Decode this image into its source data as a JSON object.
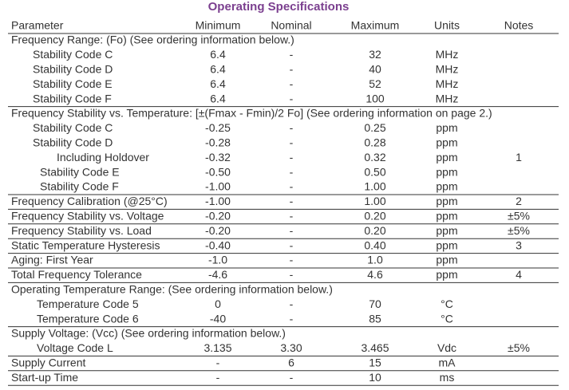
{
  "title": "Operating Specifications",
  "table": {
    "header": [
      "Parameter",
      "Minimum",
      "Nominal",
      "Maximum",
      "Units",
      "Notes"
    ],
    "rows": [
      {
        "parameter": "Frequency Range: (Fo) (See ordering information below.)"
      },
      {
        "parameter": "Stability Code C",
        "minimum": "6.4",
        "nominal": "-",
        "maximum": "32",
        "units": "MHz"
      },
      {
        "parameter": "Stability Code D",
        "minimum": "6.4",
        "nominal": "-",
        "maximum": "40",
        "units": "MHz"
      },
      {
        "parameter": "Stability Code E",
        "minimum": "6.4",
        "nominal": "-",
        "maximum": "52",
        "units": "MHz"
      },
      {
        "parameter": "Stability Code F",
        "minimum": "6.4",
        "nominal": "-",
        "maximum": "100",
        "units": "MHz"
      },
      {
        "parameter": "Frequency Stability vs. Temperature: [±(Fmax - Fmin)/2 Fo] (See ordering information on page 2.)"
      },
      {
        "parameter": "Stability Code C",
        "minimum": "-0.25",
        "nominal": "-",
        "maximum": "0.25",
        "units": "ppm"
      },
      {
        "parameter": "Stability Code D",
        "minimum": "-0.28",
        "nominal": "-",
        "maximum": "0.28",
        "units": "ppm"
      },
      {
        "parameter": "Including Holdover",
        "minimum": "-0.32",
        "nominal": "-",
        "maximum": "0.32",
        "units": "ppm",
        "notes": "1"
      },
      {
        "parameter": "Stability Code E",
        "minimum": "-0.50",
        "nominal": "-",
        "maximum": "0.50",
        "units": "ppm"
      },
      {
        "parameter": "Stability Code F",
        "minimum": "-1.00",
        "nominal": "-",
        "maximum": "1.00",
        "units": "ppm"
      },
      {
        "parameter": "Frequency Calibration (@25°C)",
        "minimum": "-1.00",
        "nominal": "-",
        "maximum": "1.00",
        "units": "ppm",
        "notes": "2"
      },
      {
        "parameter": "Frequency Stability vs. Voltage",
        "minimum": "-0.20",
        "nominal": "-",
        "maximum": "0.20",
        "units": "ppm",
        "notes": "±5%"
      },
      {
        "parameter": "Frequency Stability vs. Load",
        "minimum": "-0.20",
        "nominal": "-",
        "maximum": "0.20",
        "units": "ppm",
        "notes": "±5%"
      },
      {
        "parameter": "Static Temperature Hysteresis",
        "minimum": "-0.40",
        "nominal": "-",
        "maximum": "0.40",
        "units": "ppm",
        "notes": "3"
      },
      {
        "parameter": "Aging: First Year",
        "minimum": "-1.0",
        "nominal": "-",
        "maximum": "1.0",
        "units": "ppm"
      },
      {
        "parameter": "Total Frequency Tolerance",
        "minimum": "-4.6",
        "nominal": "-",
        "maximum": "4.6",
        "units": "ppm",
        "notes": "4"
      },
      {
        "parameter": "Operating Temperature Range: (See ordering information below.)"
      },
      {
        "parameter": "Temperature Code 5",
        "minimum": "0",
        "nominal": "-",
        "maximum": "70",
        "units": "°C"
      },
      {
        "parameter": "Temperature Code 6",
        "minimum": "-40",
        "nominal": "-",
        "maximum": "85",
        "units": "°C"
      },
      {
        "parameter": "Supply Voltage: (Vcc) (See ordering information below.)"
      },
      {
        "parameter": "Voltage Code L",
        "minimum": "3.135",
        "nominal": "3.30",
        "maximum": "3.465",
        "units": "Vdc",
        "notes": "±5%"
      },
      {
        "parameter": "Supply Current",
        "minimum": "-",
        "nominal": "6",
        "maximum": "15",
        "units": "mA"
      },
      {
        "parameter": "Start-up Time",
        "minimum": "-",
        "nominal": "-",
        "maximum": "10",
        "units": "ms"
      }
    ]
  }
}
